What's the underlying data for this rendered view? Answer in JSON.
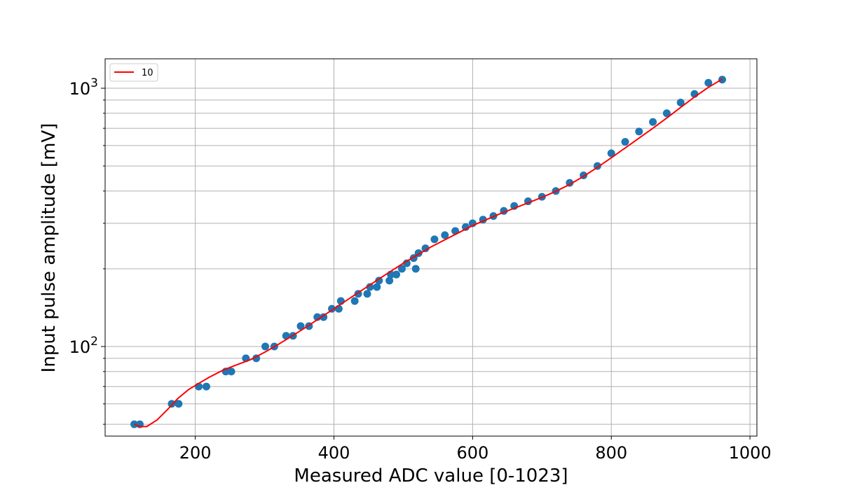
{
  "chart_data": {
    "type": "scatter",
    "xlabel": "Measured ADC value [0-1023]",
    "ylabel": "Input pulse amplitude [mV]",
    "xlim": [
      70,
      1010
    ],
    "ylim": [
      45,
      1300
    ],
    "yscale": "log",
    "grid": true,
    "legend_position": "top-left",
    "x_ticks": [
      200,
      400,
      600,
      800,
      1000
    ],
    "x_tick_labels": [
      "200",
      "400",
      "600",
      "800",
      "1000"
    ],
    "y_major_ticks": [
      100,
      1000
    ],
    "y_tick_labels": [
      {
        "base": "10",
        "exp": "2"
      },
      {
        "base": "10",
        "exp": "3"
      }
    ],
    "y_minor_ticks": [
      50,
      60,
      70,
      80,
      90,
      200,
      300,
      400,
      500,
      600,
      700,
      800,
      900
    ],
    "series": [
      {
        "kind": "scatter",
        "color": "#1f77b4",
        "points": [
          [
            112,
            50
          ],
          [
            120,
            50
          ],
          [
            166,
            60
          ],
          [
            176,
            60
          ],
          [
            205,
            70
          ],
          [
            216,
            70
          ],
          [
            244,
            80
          ],
          [
            252,
            80
          ],
          [
            273,
            90
          ],
          [
            288,
            90
          ],
          [
            301,
            100
          ],
          [
            314,
            100
          ],
          [
            331,
            110
          ],
          [
            341,
            110
          ],
          [
            352,
            120
          ],
          [
            364,
            120
          ],
          [
            376,
            130
          ],
          [
            385,
            130
          ],
          [
            397,
            140
          ],
          [
            407,
            140
          ],
          [
            410,
            150
          ],
          [
            430,
            150
          ],
          [
            435,
            160
          ],
          [
            448,
            160
          ],
          [
            452,
            170
          ],
          [
            462,
            170
          ],
          [
            465,
            180
          ],
          [
            480,
            180
          ],
          [
            482,
            190
          ],
          [
            490,
            190
          ],
          [
            498,
            200
          ],
          [
            518,
            200
          ],
          [
            505,
            210
          ],
          [
            515,
            220
          ],
          [
            522,
            230
          ],
          [
            532,
            240
          ],
          [
            545,
            260
          ],
          [
            560,
            270
          ],
          [
            575,
            280
          ],
          [
            590,
            290
          ],
          [
            600,
            300
          ],
          [
            615,
            310
          ],
          [
            630,
            320
          ],
          [
            645,
            335
          ],
          [
            660,
            350
          ],
          [
            680,
            365
          ],
          [
            700,
            380
          ],
          [
            720,
            400
          ],
          [
            740,
            430
          ],
          [
            760,
            460
          ],
          [
            780,
            500
          ],
          [
            800,
            560
          ],
          [
            820,
            620
          ],
          [
            840,
            680
          ],
          [
            860,
            740
          ],
          [
            880,
            800
          ],
          [
            900,
            880
          ],
          [
            920,
            950
          ],
          [
            940,
            1050
          ],
          [
            960,
            1080
          ]
        ]
      }
    ],
    "fit": {
      "name": "10",
      "color": "#ff0000",
      "points": [
        [
          112,
          50
        ],
        [
          120,
          49
        ],
        [
          130,
          49
        ],
        [
          145,
          52
        ],
        [
          160,
          57
        ],
        [
          175,
          63
        ],
        [
          190,
          68
        ],
        [
          205,
          72
        ],
        [
          220,
          76
        ],
        [
          240,
          81
        ],
        [
          260,
          85
        ],
        [
          280,
          89
        ],
        [
          300,
          95
        ],
        [
          320,
          102
        ],
        [
          340,
          110
        ],
        [
          360,
          119
        ],
        [
          380,
          129
        ],
        [
          400,
          140
        ],
        [
          420,
          152
        ],
        [
          440,
          165
        ],
        [
          460,
          179
        ],
        [
          480,
          194
        ],
        [
          500,
          210
        ],
        [
          520,
          226
        ],
        [
          540,
          243
        ],
        [
          560,
          259
        ],
        [
          580,
          276
        ],
        [
          600,
          294
        ],
        [
          620,
          310
        ],
        [
          640,
          327
        ],
        [
          660,
          343
        ],
        [
          680,
          360
        ],
        [
          700,
          378
        ],
        [
          720,
          399
        ],
        [
          740,
          424
        ],
        [
          760,
          456
        ],
        [
          780,
          494
        ],
        [
          800,
          538
        ],
        [
          820,
          587
        ],
        [
          840,
          641
        ],
        [
          860,
          700
        ],
        [
          880,
          767
        ],
        [
          900,
          843
        ],
        [
          920,
          925
        ],
        [
          940,
          1008
        ],
        [
          960,
          1085
        ]
      ]
    }
  }
}
